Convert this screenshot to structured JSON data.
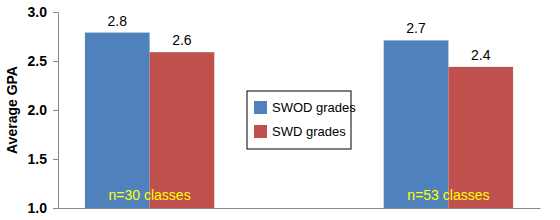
{
  "chart_data": {
    "type": "bar",
    "y_label": "Average GPA",
    "categories": [
      "n=30 classes",
      "n=53 classes"
    ],
    "series": [
      {
        "name": "SWOD grades",
        "color": "#4f81bd",
        "values": [
          2.79,
          2.71
        ],
        "value_labels": [
          "2.8",
          "2.7"
        ]
      },
      {
        "name": "SWD grades",
        "color": "#c0504d",
        "values": [
          2.59,
          2.44
        ],
        "value_labels": [
          "2.6",
          "2.4"
        ]
      }
    ],
    "ylim": [
      1.0,
      3.0
    ],
    "yticks": [
      {
        "value": 1.0,
        "label": "1.0"
      },
      {
        "value": 1.5,
        "label": "1.5"
      },
      {
        "value": 2.0,
        "label": "2.0"
      },
      {
        "value": 2.5,
        "label": "2.5"
      },
      {
        "value": 3.0,
        "label": "3.0"
      }
    ],
    "grid": false,
    "legend": "center",
    "data_labels": true
  }
}
